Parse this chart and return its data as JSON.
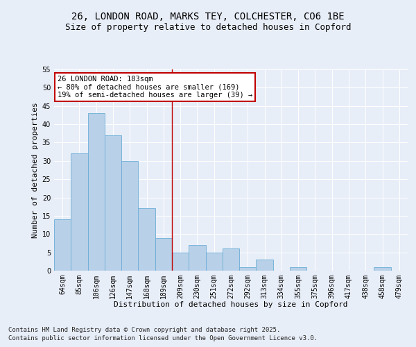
{
  "title1": "26, LONDON ROAD, MARKS TEY, COLCHESTER, CO6 1BE",
  "title2": "Size of property relative to detached houses in Copford",
  "xlabel": "Distribution of detached houses by size in Copford",
  "ylabel": "Number of detached properties",
  "categories": [
    "64sqm",
    "85sqm",
    "106sqm",
    "126sqm",
    "147sqm",
    "168sqm",
    "189sqm",
    "209sqm",
    "230sqm",
    "251sqm",
    "272sqm",
    "292sqm",
    "313sqm",
    "334sqm",
    "355sqm",
    "375sqm",
    "396sqm",
    "417sqm",
    "438sqm",
    "458sqm",
    "479sqm"
  ],
  "values": [
    14,
    32,
    43,
    37,
    30,
    17,
    9,
    5,
    7,
    5,
    6,
    1,
    3,
    0,
    1,
    0,
    0,
    0,
    0,
    1,
    0
  ],
  "bar_color": "#b8d0e8",
  "bar_edge_color": "#6baed6",
  "vline_x_index": 6,
  "vline_color": "#c00000",
  "annotation_text": "26 LONDON ROAD: 183sqm\n← 80% of detached houses are smaller (169)\n19% of semi-detached houses are larger (39) →",
  "annotation_box_color": "#c00000",
  "annotation_bg_color": "#ffffff",
  "ylim": [
    0,
    55
  ],
  "yticks": [
    0,
    5,
    10,
    15,
    20,
    25,
    30,
    35,
    40,
    45,
    50,
    55
  ],
  "background_color": "#e8eef8",
  "fig_background_color": "#e8eef8",
  "footer1": "Contains HM Land Registry data © Crown copyright and database right 2025.",
  "footer2": "Contains public sector information licensed under the Open Government Licence v3.0.",
  "title_fontsize": 10,
  "subtitle_fontsize": 9,
  "axis_label_fontsize": 8,
  "tick_fontsize": 7,
  "annotation_fontsize": 7.5,
  "footer_fontsize": 6.5
}
